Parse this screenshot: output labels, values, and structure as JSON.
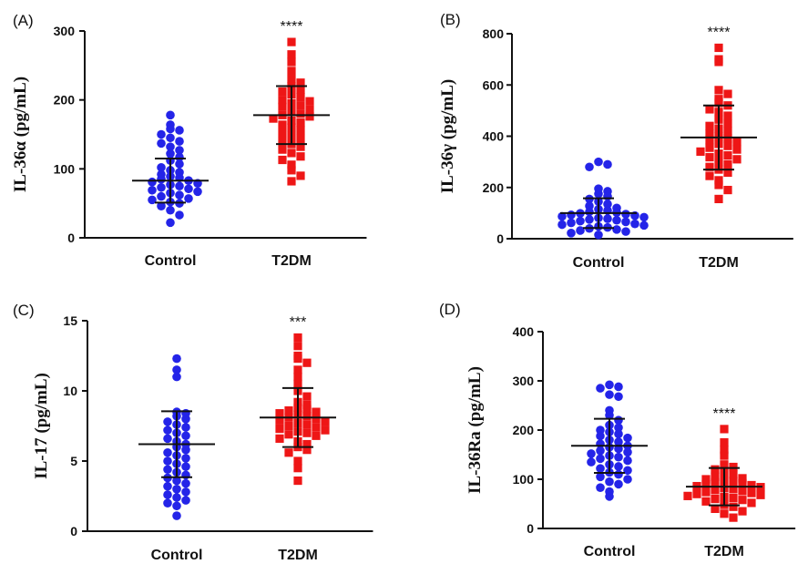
{
  "colors": {
    "control": "#2424e8",
    "t2dm": "#ee1616",
    "axis": "#111111"
  },
  "chart_data": [
    {
      "type": "scatter",
      "panel": "(A)",
      "ylabel": "IL-36α (pg/mL)",
      "ylim": [
        0,
        300
      ],
      "yticks": [
        0,
        100,
        200,
        300
      ],
      "categories": [
        "Control",
        "T2DM"
      ],
      "significance": "****",
      "series": [
        {
          "category": "Control",
          "marker": "circle",
          "mean": 83,
          "sd": 32,
          "values": [
            178,
            164,
            158,
            156,
            150,
            145,
            140,
            137,
            132,
            127,
            122,
            117,
            112,
            107,
            102,
            98,
            95,
            92,
            89,
            87,
            85,
            83,
            81,
            79,
            77,
            75,
            73,
            71,
            69,
            67,
            65,
            62,
            60,
            57,
            55,
            52,
            50,
            46,
            40,
            33,
            22
          ]
        },
        {
          "category": "T2DM",
          "marker": "square",
          "mean": 178,
          "sd": 42,
          "values": [
            284,
            266,
            255,
            242,
            230,
            225,
            220,
            215,
            212,
            208,
            204,
            200,
            198,
            195,
            192,
            190,
            186,
            183,
            180,
            178,
            176,
            173,
            170,
            167,
            164,
            160,
            156,
            152,
            148,
            144,
            140,
            136,
            132,
            128,
            123,
            118,
            113,
            106,
            98,
            90,
            82
          ]
        }
      ]
    },
    {
      "type": "scatter",
      "panel": "(B)",
      "ylabel": "IL-36γ (pg/mL)",
      "ylim": [
        0,
        800
      ],
      "yticks": [
        0,
        200,
        400,
        600,
        800
      ],
      "categories": [
        "Control",
        "T2DM"
      ],
      "significance": "****",
      "series": [
        {
          "category": "Control",
          "marker": "circle",
          "mean": 100,
          "sd": 58,
          "values": [
            300,
            290,
            280,
            195,
            185,
            175,
            165,
            155,
            145,
            135,
            128,
            120,
            115,
            110,
            105,
            102,
            99,
            96,
            93,
            90,
            87,
            84,
            81,
            78,
            75,
            72,
            69,
            66,
            62,
            58,
            55,
            52,
            48,
            44,
            40,
            36,
            32,
            28,
            22,
            15
          ]
        },
        {
          "category": "T2DM",
          "marker": "square",
          "mean": 395,
          "sd": 125,
          "values": [
            745,
            700,
            690,
            580,
            565,
            545,
            530,
            520,
            505,
            495,
            480,
            465,
            450,
            440,
            430,
            420,
            410,
            400,
            392,
            385,
            378,
            370,
            362,
            355,
            348,
            340,
            332,
            325,
            318,
            310,
            300,
            290,
            280,
            270,
            258,
            245,
            228,
            210,
            190,
            155
          ]
        }
      ]
    },
    {
      "type": "scatter",
      "panel": "(C)",
      "ylabel": "IL-17 (pg/mL)",
      "ylim": [
        0,
        15
      ],
      "yticks": [
        0,
        5,
        10,
        15
      ],
      "categories": [
        "Control",
        "T2DM"
      ],
      "significance": "***",
      "series": [
        {
          "category": "Control",
          "marker": "circle",
          "mean": 6.2,
          "sd": 2.35,
          "values": [
            12.3,
            11.5,
            11.0,
            8.5,
            8.4,
            8.2,
            8.0,
            7.8,
            7.6,
            7.4,
            7.2,
            7.0,
            6.8,
            6.6,
            6.4,
            6.2,
            6.0,
            5.8,
            5.6,
            5.4,
            5.2,
            5.0,
            4.8,
            4.6,
            4.4,
            4.2,
            4.0,
            3.8,
            3.6,
            3.4,
            3.2,
            3.0,
            2.8,
            2.6,
            2.4,
            2.2,
            2.0,
            1.8,
            1.1
          ]
        },
        {
          "category": "T2DM",
          "marker": "square",
          "mean": 8.1,
          "sd": 2.1,
          "values": [
            13.8,
            13.2,
            12.5,
            12.3,
            12.0,
            11.5,
            11.0,
            10.5,
            10.0,
            9.6,
            9.2,
            9.0,
            8.8,
            8.7,
            8.6,
            8.5,
            8.4,
            8.3,
            8.2,
            8.1,
            8.0,
            7.9,
            7.8,
            7.7,
            7.6,
            7.5,
            7.4,
            7.3,
            7.2,
            7.1,
            7.0,
            6.9,
            6.8,
            6.6,
            6.4,
            6.2,
            6.0,
            5.8,
            5.6,
            5.0,
            4.5,
            3.6
          ]
        }
      ]
    },
    {
      "type": "scatter",
      "panel": "(D)",
      "ylabel": "IL-36Ra (pg/mL)",
      "ylim": [
        0,
        400
      ],
      "yticks": [
        0,
        100,
        200,
        300,
        400
      ],
      "categories": [
        "Control",
        "T2DM"
      ],
      "significance": "****",
      "series": [
        {
          "category": "Control",
          "marker": "circle",
          "mean": 168,
          "sd": 55,
          "values": [
            292,
            288,
            285,
            272,
            268,
            240,
            230,
            220,
            210,
            205,
            200,
            196,
            192,
            188,
            184,
            180,
            176,
            172,
            168,
            165,
            162,
            158,
            155,
            152,
            148,
            145,
            142,
            138,
            135,
            130,
            126,
            122,
            118,
            114,
            110,
            105,
            100,
            95,
            90,
            83,
            75,
            65
          ]
        },
        {
          "category": "T2DM",
          "marker": "square",
          "mean": 85,
          "sd": 38,
          "values": [
            202,
            175,
            160,
            148,
            130,
            125,
            120,
            115,
            110,
            105,
            102,
            100,
            98,
            96,
            94,
            92,
            90,
            88,
            86,
            84,
            82,
            80,
            78,
            76,
            74,
            72,
            70,
            68,
            66,
            64,
            62,
            60,
            58,
            55,
            52,
            48,
            44,
            40,
            35,
            30,
            22
          ]
        }
      ]
    }
  ]
}
